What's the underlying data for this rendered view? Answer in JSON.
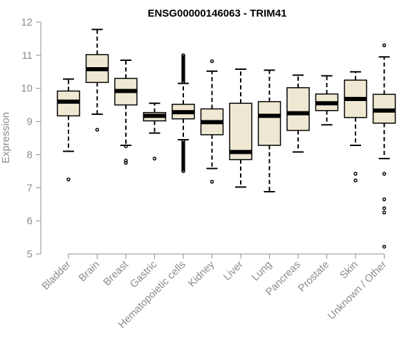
{
  "chart_data": {
    "type": "box",
    "title": "ENSG00000146063 - TRIM41",
    "xlabel": "",
    "ylabel": "Expression",
    "ylim": [
      5,
      12
    ],
    "yticks": [
      5,
      6,
      7,
      8,
      9,
      10,
      11,
      12
    ],
    "grid": false,
    "legend": "none",
    "colors": {
      "box_fill": "#efe8d2",
      "stroke": "#000000",
      "axis": "#8c8c8c"
    },
    "categories": [
      "Bladder",
      "Brain",
      "Breast",
      "Gastric",
      "Hematopoietic cells",
      "Kidney",
      "Liver",
      "Lung",
      "Pancreas",
      "Prostate",
      "Skin",
      "Unknown / Other"
    ],
    "boxes": [
      {
        "category": "Bladder",
        "min": 8.1,
        "q1": 9.17,
        "median": 9.6,
        "q3": 9.92,
        "max": 10.28,
        "outliers": [
          7.25
        ]
      },
      {
        "category": "Brain",
        "min": 9.22,
        "q1": 10.18,
        "median": 10.58,
        "q3": 11.02,
        "max": 11.78,
        "outliers": [
          8.75
        ]
      },
      {
        "category": "Breast",
        "min": 8.28,
        "q1": 9.5,
        "median": 9.92,
        "q3": 10.3,
        "max": 10.85,
        "outliers": [
          7.75,
          7.82,
          8.25
        ]
      },
      {
        "category": "Gastric",
        "min": 8.65,
        "q1": 9.02,
        "median": 9.17,
        "q3": 9.27,
        "max": 9.55,
        "outliers": [
          7.88
        ]
      },
      {
        "category": "Hematopoietic cells",
        "min": 8.45,
        "q1": 9.08,
        "median": 9.28,
        "q3": 9.52,
        "max": 10.15,
        "outliers": [
          7.5,
          7.55,
          7.6,
          7.65,
          7.7,
          7.75,
          7.8,
          7.85,
          7.9,
          7.95,
          8.0,
          8.05,
          8.1,
          8.15,
          8.2,
          8.25,
          8.3,
          8.35,
          8.4,
          10.2,
          10.25,
          10.3,
          10.35,
          10.4,
          10.45,
          10.5,
          10.55,
          10.6,
          10.65,
          10.7,
          10.75,
          10.8,
          10.85,
          10.9,
          10.95,
          11.0
        ]
      },
      {
        "category": "Kidney",
        "min": 7.58,
        "q1": 8.6,
        "median": 8.98,
        "q3": 9.38,
        "max": 10.52,
        "outliers": [
          7.18,
          10.82
        ]
      },
      {
        "category": "Liver",
        "min": 7.02,
        "q1": 7.85,
        "median": 8.08,
        "q3": 9.55,
        "max": 10.58,
        "outliers": []
      },
      {
        "category": "Lung",
        "min": 6.88,
        "q1": 8.28,
        "median": 9.17,
        "q3": 9.6,
        "max": 10.55,
        "outliers": []
      },
      {
        "category": "Pancreas",
        "min": 8.08,
        "q1": 8.73,
        "median": 9.25,
        "q3": 10.02,
        "max": 10.4,
        "outliers": []
      },
      {
        "category": "Prostate",
        "min": 8.9,
        "q1": 9.33,
        "median": 9.55,
        "q3": 9.83,
        "max": 10.38,
        "outliers": []
      },
      {
        "category": "Skin",
        "min": 8.28,
        "q1": 9.12,
        "median": 9.68,
        "q3": 10.25,
        "max": 10.5,
        "outliers": [
          7.22,
          7.42
        ]
      },
      {
        "category": "Unknown / Other",
        "min": 7.88,
        "q1": 8.95,
        "median": 9.33,
        "q3": 9.82,
        "max": 10.95,
        "outliers": [
          5.22,
          6.25,
          6.38,
          6.65,
          7.42,
          11.3
        ]
      }
    ]
  }
}
